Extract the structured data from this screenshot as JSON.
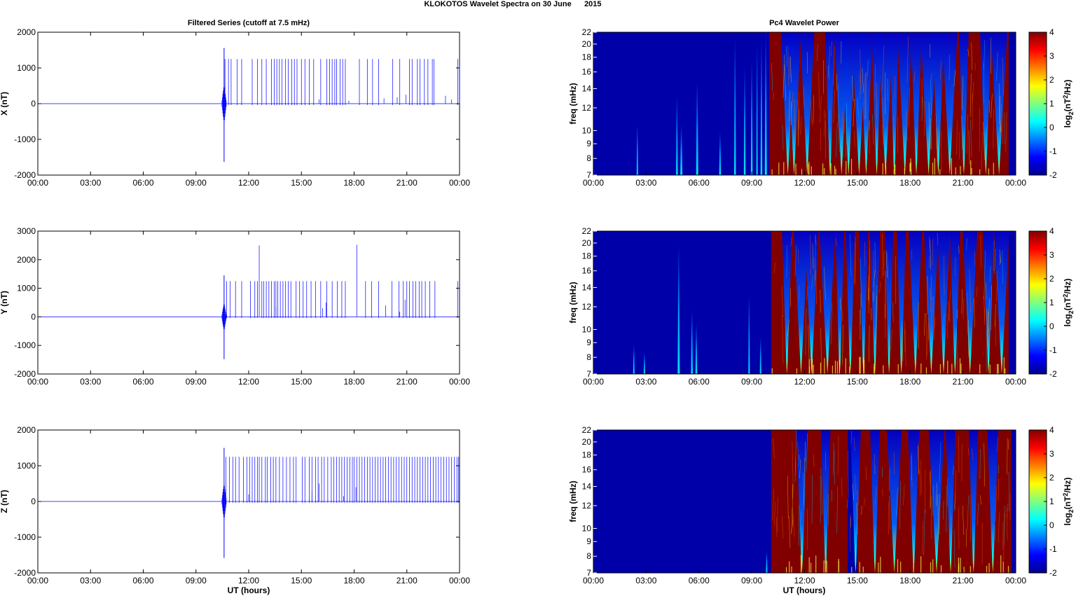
{
  "figure": {
    "title": "KLOKOTOS Wavelet Spectra on 30 June      2015",
    "left_title": "Filtered Series (cutoff at 7.5 mHz)",
    "right_title": "Pc4 Wavelet Power",
    "xlabel": "UT (hours)",
    "freq_ylabel": "freq (mHz)",
    "colorbar_label_base": "log",
    "colorbar_label_sub": "2",
    "colorbar_label_paren": "(nT",
    "colorbar_label_sup": "2",
    "colorbar_label_tail": "/Hz)"
  },
  "colors": {
    "series_line": "#0000ff",
    "axis": "#000000",
    "jet_low": "#00008f",
    "jet_high": "#800000"
  },
  "chart_data": [
    {
      "type": "line",
      "component": "X",
      "ylabel": "X (nT)",
      "ylim": [
        -2000,
        2000
      ],
      "yticks": [
        -2000,
        -1000,
        0,
        1000,
        2000
      ],
      "xlim": [
        0,
        24
      ],
      "xticks": [
        "00:00",
        "03:00",
        "06:00",
        "09:00",
        "12:00",
        "15:00",
        "18:00",
        "21:00",
        "00:00"
      ],
      "baseline": 0,
      "burst": {
        "time": 10.6,
        "max": 1560,
        "min": -1630
      },
      "spike_level": 1250,
      "spike_times": [
        10.65,
        10.85,
        11.0,
        11.35,
        11.6,
        12.2,
        12.5,
        12.75,
        13.0,
        13.3,
        13.45,
        13.6,
        13.75,
        13.9,
        14.1,
        14.25,
        14.45,
        14.6,
        14.75,
        15.0,
        15.2,
        15.45,
        15.7,
        16.1,
        16.45,
        16.6,
        16.75,
        16.9,
        17.0,
        17.2,
        17.35,
        17.5,
        18.3,
        18.75,
        19.05,
        19.4,
        20.2,
        20.6,
        21.15,
        21.3,
        21.6,
        21.75,
        22.0,
        22.2,
        22.45,
        22.55,
        23.9
      ],
      "small_spikes": [
        [
          16.0,
          120
        ],
        [
          17.7,
          80
        ],
        [
          19.7,
          150
        ],
        [
          20.45,
          180
        ],
        [
          20.95,
          250
        ],
        [
          23.2,
          220
        ],
        [
          23.55,
          120
        ],
        [
          24.0,
          1050
        ]
      ]
    },
    {
      "type": "line",
      "component": "Y",
      "ylabel": "Y (nT)",
      "ylim": [
        -2000,
        3000
      ],
      "yticks": [
        -2000,
        -1000,
        0,
        1000,
        2000,
        3000
      ],
      "xlim": [
        0,
        24
      ],
      "xticks": [
        "00:00",
        "03:00",
        "06:00",
        "09:00",
        "12:00",
        "15:00",
        "18:00",
        "21:00",
        "00:00"
      ],
      "baseline": 0,
      "burst": {
        "time": 10.6,
        "max": 1450,
        "min": -1480
      },
      "spike_level": 1250,
      "spike_times": [
        10.75,
        10.95,
        11.25,
        11.6,
        12.1,
        12.35,
        12.5,
        12.75,
        12.85,
        13.0,
        13.15,
        13.3,
        13.45,
        13.55,
        13.65,
        13.8,
        13.95,
        14.1,
        14.25,
        14.4,
        14.7,
        14.9,
        15.1,
        15.3,
        15.55,
        15.8,
        16.1,
        16.45,
        16.75,
        17.05,
        17.3,
        17.5,
        18.65,
        19.0,
        19.4,
        20.15,
        20.55,
        20.8,
        21.0,
        21.15,
        21.35,
        21.5,
        21.7,
        21.85,
        22.05,
        22.3,
        22.6,
        23.9
      ],
      "tall_spikes": [
        [
          12.6,
          2500
        ],
        [
          18.15,
          2520
        ]
      ],
      "small_spikes": [
        [
          13.55,
          350
        ],
        [
          16.4,
          500
        ],
        [
          16.2,
          300
        ],
        [
          19.8,
          400
        ],
        [
          20.6,
          180
        ],
        [
          20.9,
          600
        ]
      ]
    },
    {
      "type": "line",
      "component": "Z",
      "ylabel": "Z (nT)",
      "ylim": [
        -2000,
        2000
      ],
      "yticks": [
        -2000,
        -1000,
        0,
        1000,
        2000
      ],
      "xlim": [
        0,
        24
      ],
      "xticks": [
        "00:00",
        "03:00",
        "06:00",
        "09:00",
        "12:00",
        "15:00",
        "18:00",
        "21:00",
        "00:00"
      ],
      "baseline": 0,
      "burst": {
        "time": 10.6,
        "max": 1500,
        "min": -1580
      },
      "spike_level": 1250,
      "spike_times": [
        10.7,
        10.9,
        11.1,
        11.25,
        11.45,
        11.7,
        11.9,
        12.05,
        12.2,
        12.35,
        12.5,
        12.6,
        12.75,
        12.95,
        13.05,
        13.25,
        13.4,
        13.55,
        13.75,
        13.95,
        14.15,
        14.35,
        14.55,
        14.7,
        15.05,
        15.2,
        15.45,
        15.6,
        15.8,
        15.95,
        16.15,
        16.3,
        16.5,
        16.7,
        16.85,
        17.0,
        17.15,
        17.3,
        17.45,
        17.6,
        17.75,
        17.9,
        18.0,
        18.15,
        18.3,
        18.45,
        18.6,
        18.75,
        18.9,
        19.05,
        19.2,
        19.35,
        19.5,
        19.65,
        19.8,
        19.95,
        20.1,
        20.25,
        20.4,
        20.55,
        20.7,
        20.85,
        21.0,
        21.15,
        21.3,
        21.45,
        21.6,
        21.75,
        21.9,
        22.05,
        22.2,
        22.35,
        22.5,
        22.65,
        22.8,
        22.95,
        23.1,
        23.25,
        23.4,
        23.55,
        23.7,
        23.85,
        23.95
      ],
      "small_spikes": [
        [
          12.0,
          200
        ],
        [
          15.6,
          300
        ],
        [
          16.0,
          500
        ],
        [
          17.4,
          150
        ],
        [
          18.1,
          400
        ]
      ]
    },
    {
      "type": "heatmap",
      "component": "X",
      "ylabel": "freq (mHz)",
      "ylim": [
        7,
        22
      ],
      "yticks": [
        7,
        8,
        9,
        10,
        12,
        14,
        16,
        18,
        20,
        22
      ],
      "xlim": [
        0,
        24
      ],
      "xticks": [
        "00:00",
        "03:00",
        "06:00",
        "09:00",
        "12:00",
        "15:00",
        "18:00",
        "21:00",
        "00:00"
      ],
      "colorbar": {
        "ticks": [
          -2,
          -1,
          0,
          1,
          2,
          3,
          4
        ],
        "range": [
          -2,
          4
        ],
        "colormap": "jet"
      },
      "active_interval": [
        10.0,
        23.6
      ],
      "gaps": [
        11.05,
        11.4,
        12.15,
        13.45,
        14.1,
        14.5,
        15.1,
        15.5,
        16.1,
        16.6,
        17.1,
        17.7,
        18.35,
        19.05,
        19.6,
        20.25,
        21.05,
        22.3,
        23.05
      ],
      "pre_streaks": [
        [
          2.5,
          0.05,
          0.35
        ],
        [
          4.75,
          0.1,
          0.55
        ],
        [
          5.0,
          0.12,
          0.35
        ],
        [
          5.9,
          0.12,
          0.65
        ],
        [
          7.2,
          0.1,
          0.3
        ],
        [
          8.05,
          0.1,
          0.95
        ],
        [
          8.6,
          0.1,
          0.75
        ],
        [
          9.0,
          0.1,
          0.8
        ],
        [
          9.3,
          0.08,
          0.9
        ],
        [
          9.55,
          0.1,
          0.95
        ],
        [
          9.8,
          0.12,
          1.0
        ]
      ]
    },
    {
      "type": "heatmap",
      "component": "Y",
      "ylabel": "freq (mHz)",
      "ylim": [
        7,
        22
      ],
      "yticks": [
        7,
        8,
        9,
        10,
        12,
        14,
        16,
        18,
        20,
        22
      ],
      "xlim": [
        0,
        24
      ],
      "xticks": [
        "00:00",
        "03:00",
        "06:00",
        "09:00",
        "12:00",
        "15:00",
        "18:00",
        "21:00",
        "00:00"
      ],
      "colorbar": {
        "ticks": [
          -2,
          -1,
          0,
          1,
          2,
          3,
          4
        ],
        "range": [
          -2,
          4
        ],
        "colormap": "jet"
      },
      "active_interval": [
        10.1,
        23.6
      ],
      "gaps": [
        11.0,
        11.8,
        12.4,
        13.3,
        14.0,
        14.6,
        15.35,
        16.0,
        16.8,
        17.5,
        18.3,
        19.2,
        19.9,
        20.55,
        21.4,
        22.45,
        23.2
      ],
      "pre_streaks": [
        [
          2.3,
          0.05,
          0.2
        ],
        [
          2.9,
          0.05,
          0.15
        ],
        [
          4.85,
          0.12,
          0.9
        ],
        [
          5.6,
          0.1,
          0.45
        ],
        [
          5.85,
          0.1,
          0.35
        ],
        [
          8.85,
          0.08,
          0.55
        ],
        [
          9.5,
          0.05,
          0.25
        ]
      ]
    },
    {
      "type": "heatmap",
      "component": "Z",
      "ylabel": "freq (mHz)",
      "ylim": [
        7,
        22
      ],
      "yticks": [
        7,
        8,
        9,
        10,
        12,
        14,
        16,
        18,
        20,
        22
      ],
      "xlim": [
        0,
        24
      ],
      "xticks": [
        "00:00",
        "03:00",
        "06:00",
        "09:00",
        "12:00",
        "15:00",
        "18:00",
        "21:00",
        "00:00"
      ],
      "colorbar": {
        "ticks": [
          -2,
          -1,
          0,
          1,
          2,
          3,
          4
        ],
        "range": [
          -2,
          4
        ],
        "colormap": "jet"
      },
      "active_interval": [
        10.1,
        23.75
      ],
      "gaps": [
        11.85,
        13.2,
        14.9,
        16.0,
        17.1,
        18.2,
        19.5,
        20.3,
        21.6,
        22.7
      ],
      "wide_gap": [
        14.45,
        15.0
      ],
      "pre_streaks": [
        [
          9.85,
          0.05,
          0.15
        ]
      ]
    }
  ]
}
